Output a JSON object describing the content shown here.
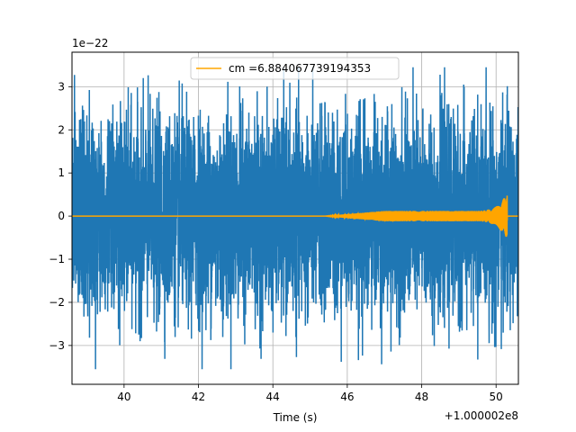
{
  "chart_data": {
    "type": "line",
    "xlabel": "Time (s)",
    "ylabel": "",
    "y_scale_text": "1e−22",
    "x_offset_text": "+1.000002e8",
    "xlim": [
      38.6,
      50.6
    ],
    "ylim": [
      -3.9,
      3.8
    ],
    "grid": true,
    "x_ticks": [
      40,
      42,
      44,
      46,
      48,
      50
    ],
    "x_tick_labels": [
      "40",
      "42",
      "44",
      "46",
      "48",
      "50"
    ],
    "y_ticks": [
      -3,
      -2,
      -1,
      0,
      1,
      2,
      3
    ],
    "y_tick_labels": [
      "−3",
      "−2",
      "−1",
      "0",
      "1",
      "2",
      "3"
    ],
    "legend": {
      "placement": "top-center"
    },
    "series": [
      {
        "color": "#1f77b4",
        "description": "noisy strain data",
        "x_range": [
          38.6,
          50.6
        ],
        "typical_envelope": [
          -2.0,
          2.0
        ],
        "peak_max": 3.45,
        "peak_min": -3.55
      },
      {
        "name": "cm =6.884067739194353",
        "color": "#ffa500",
        "description": "template waveform",
        "x_range": [
          38.6,
          50.6
        ],
        "onset_x": 45.4,
        "plateau_amplitude": 0.12,
        "chirp_end_x": 50.3,
        "chirp_peak_max": 0.32,
        "chirp_peak_min": -0.52
      }
    ]
  }
}
